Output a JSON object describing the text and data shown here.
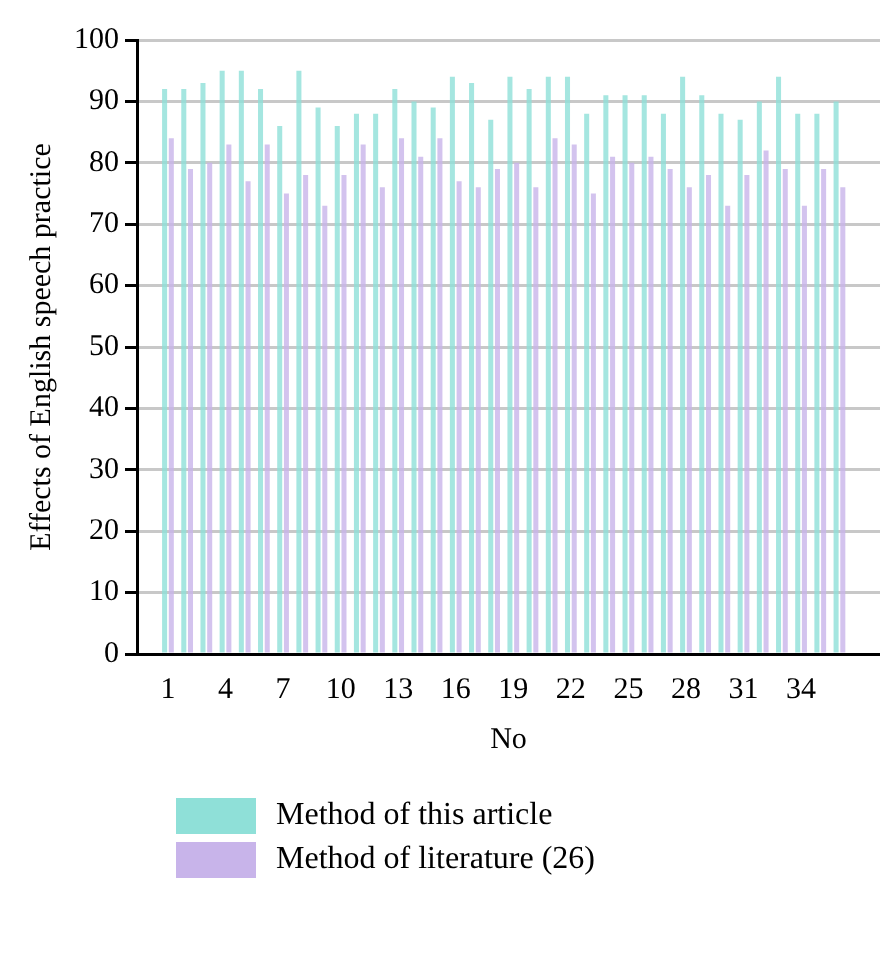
{
  "chart_data": {
    "type": "bar",
    "xlabel": "No",
    "ylabel": "Effects of English speech practice",
    "x": [
      1,
      2,
      3,
      4,
      5,
      6,
      7,
      8,
      9,
      10,
      11,
      12,
      13,
      14,
      15,
      16,
      17,
      18,
      19,
      20,
      21,
      22,
      23,
      24,
      25,
      26,
      27,
      28,
      29,
      30,
      31,
      32,
      33,
      34,
      35,
      36
    ],
    "series": [
      {
        "name": "Method of this article",
        "color": "#8fe0d8",
        "values": [
          92,
          92,
          93,
          95,
          95,
          92,
          86,
          95,
          89,
          86,
          88,
          88,
          92,
          90,
          89,
          94,
          93,
          87,
          94,
          92,
          94,
          94,
          88,
          91,
          91,
          91,
          88,
          94,
          91,
          88,
          87,
          90,
          94,
          88,
          88,
          90
        ]
      },
      {
        "name": "Method of literature (26)",
        "color": "#c8b4ea",
        "values": [
          84,
          79,
          80,
          83,
          77,
          83,
          75,
          78,
          73,
          78,
          83,
          76,
          84,
          81,
          84,
          77,
          76,
          79,
          80,
          76,
          84,
          83,
          75,
          81,
          80,
          81,
          79,
          76,
          78,
          73,
          78,
          82,
          79,
          73,
          79,
          76
        ]
      }
    ],
    "xlim": [
      1,
      36.5
    ],
    "xticks": [
      1,
      4,
      7,
      10,
      13,
      16,
      19,
      22,
      25,
      28,
      31,
      34
    ],
    "ylim": [
      0,
      100
    ],
    "yticks": [
      0,
      10,
      20,
      30,
      40,
      50,
      60,
      70,
      80,
      90,
      100
    ],
    "grid": "y",
    "legend": "bottom"
  }
}
